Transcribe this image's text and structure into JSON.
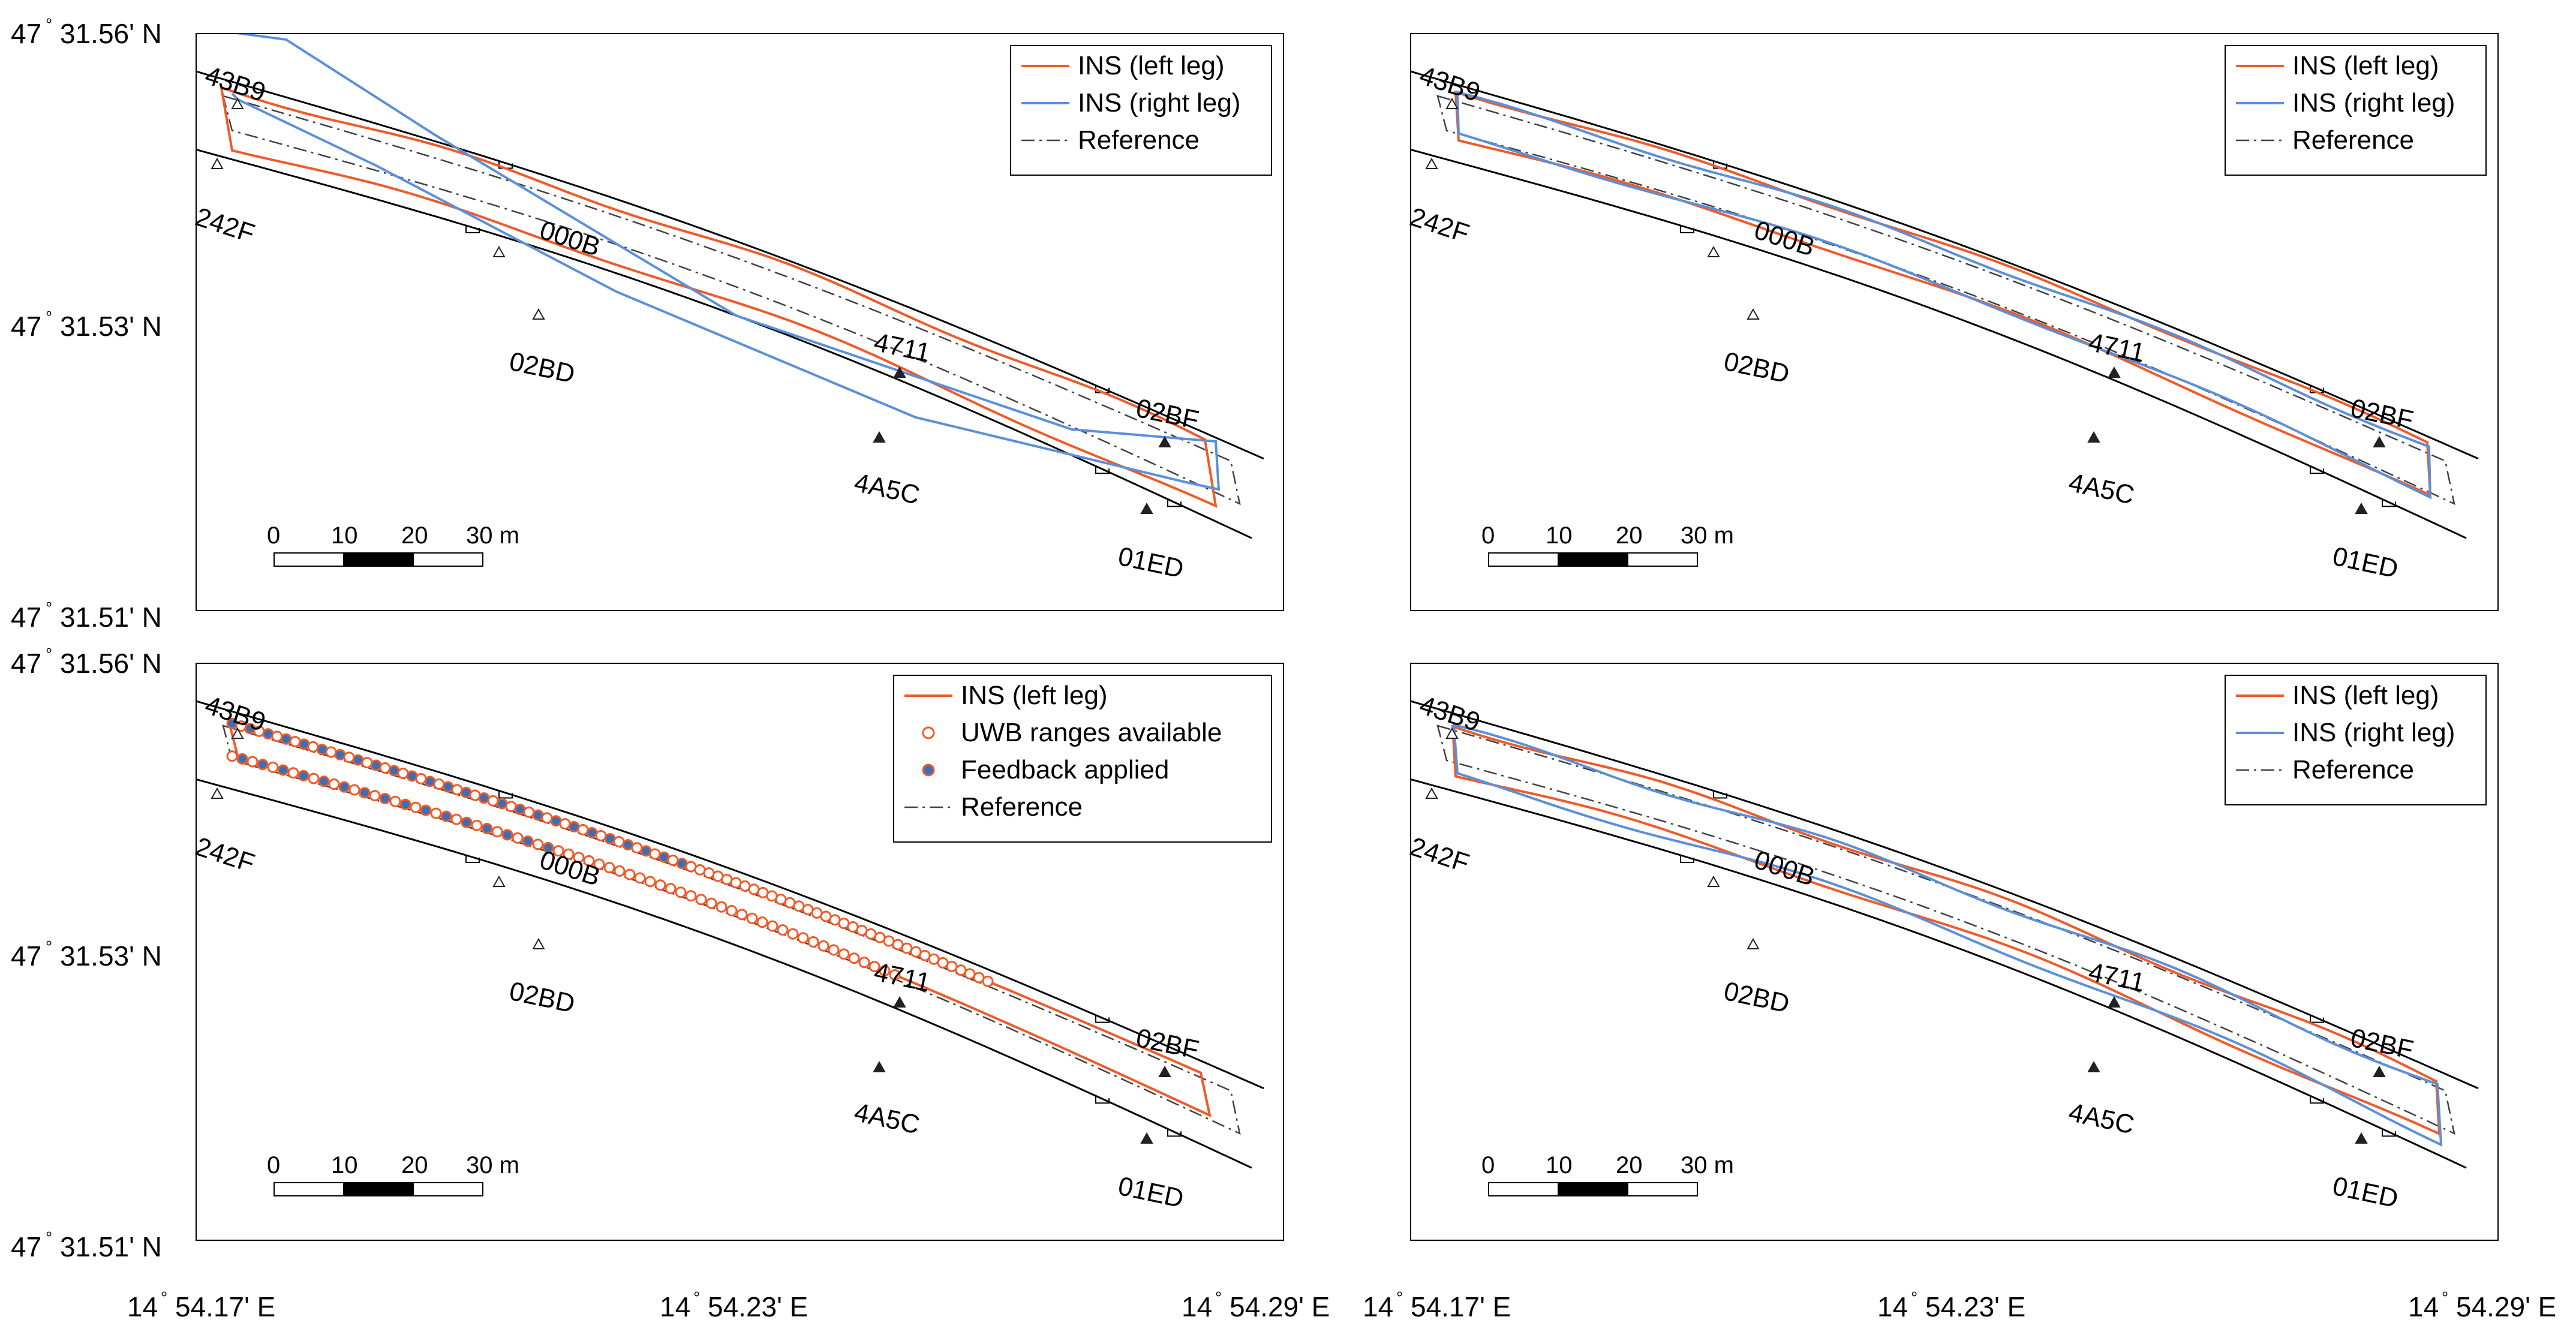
{
  "colors": {
    "left_leg": "#f05a28",
    "right_leg": "#5b8fd9",
    "reference": "#404040",
    "wall": "#000000",
    "feedback_fill": "#3a6fb8"
  },
  "axes": {
    "y_ticks": [
      {
        "deg": "47",
        "sup": "°",
        "rest": "31.56' N"
      },
      {
        "deg": "47",
        "sup": "°",
        "rest": "31.53' N"
      },
      {
        "deg": "47",
        "sup": "°",
        "rest": "31.51' N"
      }
    ],
    "x_ticks": [
      {
        "deg": "14",
        "sup": "°",
        "rest": "54.17' E"
      },
      {
        "deg": "14",
        "sup": "°",
        "rest": "54.23' E"
      },
      {
        "deg": "14",
        "sup": "°",
        "rest": "54.29' E"
      }
    ]
  },
  "scale_bar": {
    "labels": [
      "0",
      "10",
      "20",
      "30 m"
    ]
  },
  "anchors": [
    "43B9",
    "242F",
    "000B",
    "02BD",
    "4711",
    "4A5C",
    "02BF",
    "01ED"
  ],
  "chart_data": [
    {
      "type": "line",
      "panel": "top-left",
      "legend": {
        "placement": "top-right",
        "entries": [
          "INS (left leg)",
          "INS (right leg)",
          "Reference"
        ]
      },
      "series": [
        {
          "name": "INS (left leg)",
          "x": [
            0.0,
            0.03,
            0.35,
            0.6,
            0.98,
            1.0,
            0.99,
            0.02,
            0.0
          ],
          "y": [
            0.0,
            0.1,
            0.28,
            0.42,
            0.62,
            0.7,
            0.75,
            0.35,
            0.0
          ]
        },
        {
          "name": "INS (right leg)",
          "x": [
            0.0,
            0.1,
            0.4,
            0.7,
            0.99,
            0.98,
            0.6,
            0.04,
            0.05
          ],
          "y": [
            0.0,
            0.05,
            0.25,
            0.45,
            0.7,
            0.8,
            0.5,
            0.05,
            0.0
          ]
        },
        {
          "name": "Reference",
          "x": [
            0.0,
            1.0,
            1.0,
            0.0,
            0.0
          ],
          "y": [
            0.0,
            0.62,
            0.68,
            0.12,
            0.0
          ]
        }
      ]
    },
    {
      "type": "line",
      "panel": "top-right",
      "legend": {
        "placement": "top-right",
        "entries": [
          "INS (left leg)",
          "INS (right leg)",
          "Reference"
        ]
      },
      "series": [
        {
          "name": "INS (left leg)",
          "x": [
            0.0,
            0.3,
            0.6,
            1.0,
            1.0,
            0.0
          ],
          "y": [
            0.0,
            0.2,
            0.42,
            0.62,
            0.68,
            0.0
          ]
        },
        {
          "name": "INS (right leg)",
          "x": [
            0.0,
            0.3,
            0.6,
            1.0,
            1.0,
            0.0
          ],
          "y": [
            0.0,
            0.22,
            0.45,
            0.64,
            0.7,
            0.0
          ]
        },
        {
          "name": "Reference",
          "x": [
            0.0,
            1.0,
            1.0,
            0.0,
            0.0
          ],
          "y": [
            0.0,
            0.62,
            0.68,
            0.12,
            0.0
          ]
        }
      ]
    },
    {
      "type": "line",
      "panel": "bottom-left",
      "legend": {
        "placement": "top-right",
        "entries": [
          "INS (left leg)",
          "UWB ranges available",
          "Feedback applied",
          "Reference"
        ]
      },
      "series": [
        {
          "name": "INS (left leg)",
          "x": [
            0.0,
            1.0,
            1.0,
            0.0,
            0.0
          ],
          "y": [
            0.0,
            0.6,
            0.66,
            0.08,
            0.0
          ]
        },
        {
          "name": "Reference",
          "x": [
            0.0,
            1.0,
            1.0,
            0.0,
            0.0
          ],
          "y": [
            0.0,
            0.62,
            0.68,
            0.12,
            0.0
          ]
        }
      ]
    },
    {
      "type": "line",
      "panel": "bottom-right",
      "legend": {
        "placement": "top-right",
        "entries": [
          "INS (left leg)",
          "INS (right leg)",
          "Reference"
        ]
      },
      "series": [
        {
          "name": "INS (left leg)",
          "x": [
            0.0,
            0.5,
            1.0,
            1.0,
            0.0,
            0.0
          ],
          "y": [
            0.0,
            0.35,
            0.62,
            0.7,
            0.1,
            0.0
          ]
        },
        {
          "name": "INS (right leg)",
          "x": [
            0.0,
            0.5,
            1.0,
            1.0,
            0.0,
            0.0
          ],
          "y": [
            0.0,
            0.36,
            0.63,
            0.71,
            0.11,
            0.0
          ]
        },
        {
          "name": "Reference",
          "x": [
            0.0,
            1.0,
            1.0,
            0.0,
            0.0
          ],
          "y": [
            0.0,
            0.62,
            0.68,
            0.12,
            0.0
          ]
        }
      ]
    }
  ]
}
